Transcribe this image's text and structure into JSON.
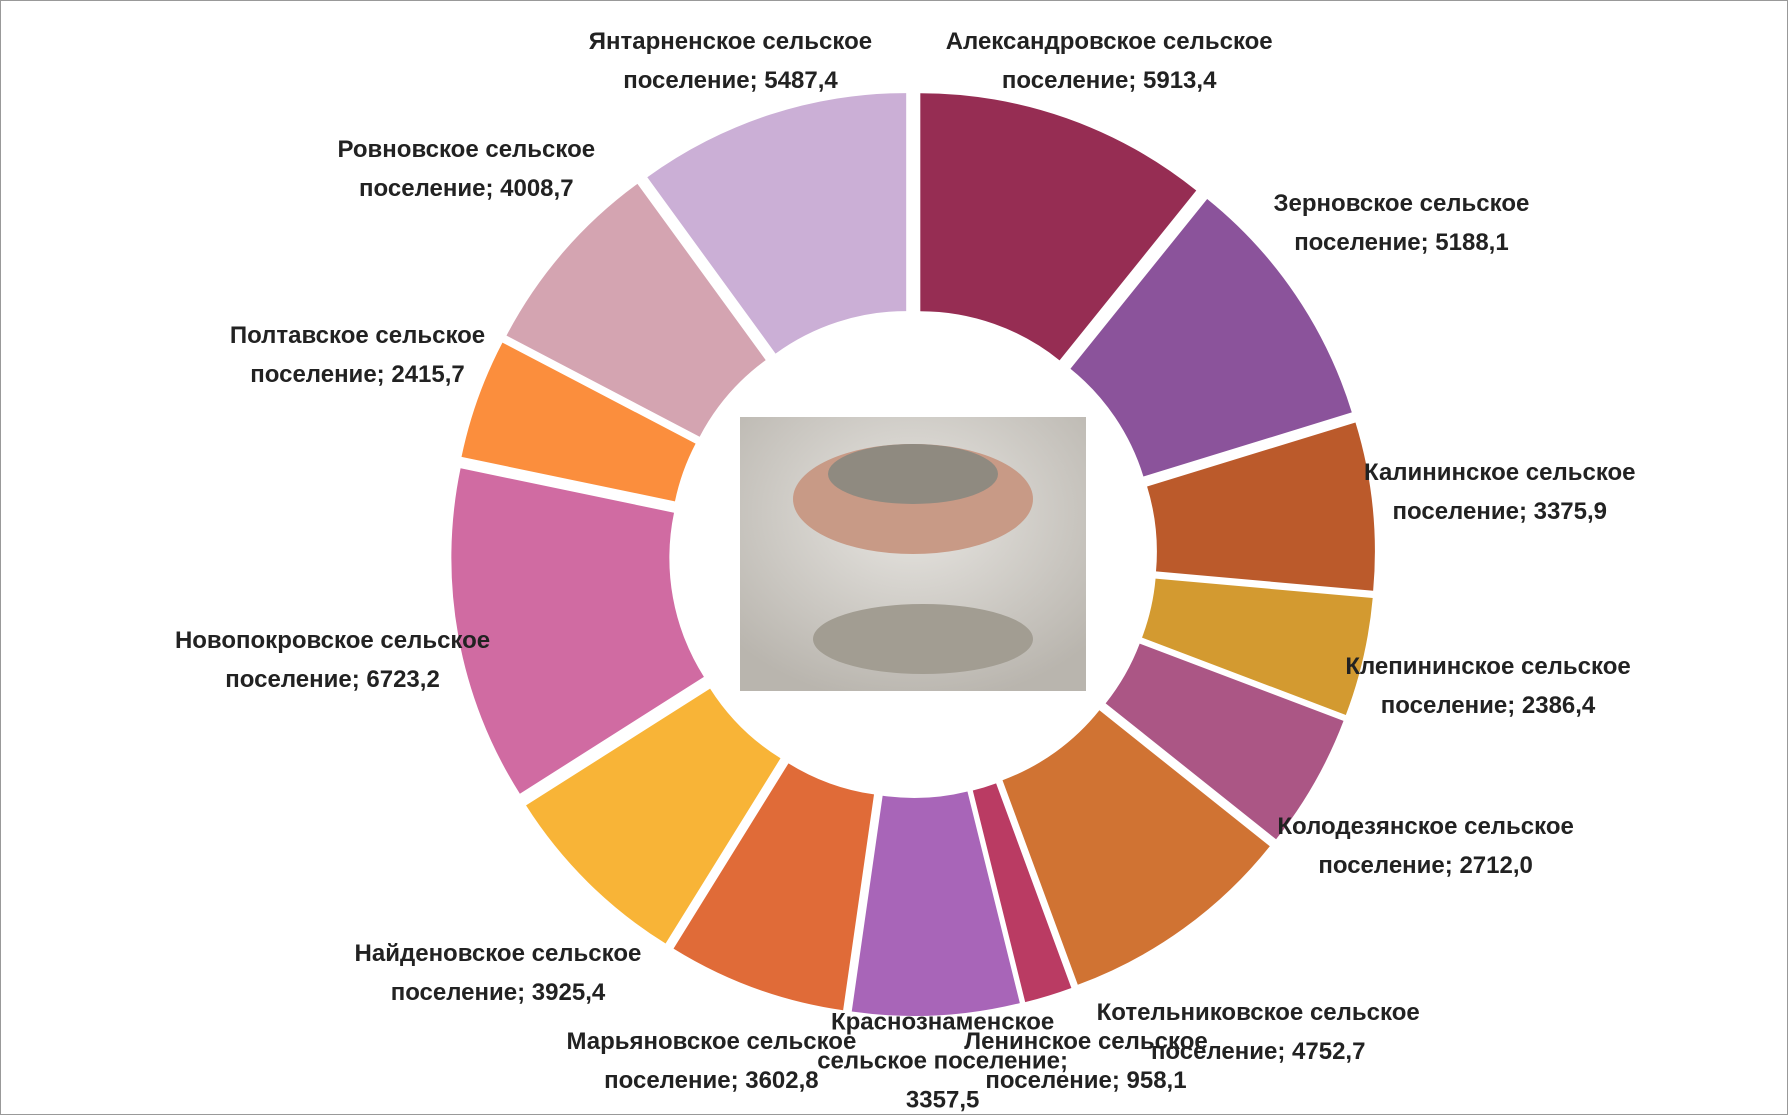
{
  "chart_data": {
    "type": "pie",
    "categories": [
      "Александровское сельское поселение",
      "Зерновское сельское поселение",
      "Калининское сельское поселение",
      "Клепининское сельское поселение",
      "Колодезянское сельское поселение",
      "Котельниковское сельское поселение",
      "Ленинское сельское поселение",
      "Краснознаменское сельское поселение",
      "Марьяновское сельское поселение",
      "Найденовское сельское поселение",
      "Новопокровское сельское поселение",
      "Полтавское сельское поселение",
      "Ровновское сельское поселение",
      "Янтарненское сельское поселение"
    ],
    "values": [
      5913.4,
      5188.1,
      3375.9,
      2386.4,
      2712.0,
      4752.7,
      958.1,
      3357.5,
      3602.8,
      3925.4,
      6723.2,
      2415.7,
      4008.7,
      5487.4
    ],
    "value_labels": [
      "5913,4",
      "5188,1",
      "3375,9",
      "2386,4",
      "2712,0",
      "4752,7",
      "958,1",
      "3357,5",
      "3602,8",
      "3925,4",
      "6723,2",
      "2415,7",
      "4008,7",
      "5487,4"
    ],
    "label_separator": "; ",
    "colors": [
      "#962d53",
      "#8b539b",
      "#bb5a2b",
      "#d39a30",
      "#ab5685",
      "#d07333",
      "#ba3b63",
      "#a865b8",
      "#e06b38",
      "#f8b437",
      "#d06ba2",
      "#fb8e3d",
      "#d4a4b1",
      "#cbafd6"
    ]
  }
}
